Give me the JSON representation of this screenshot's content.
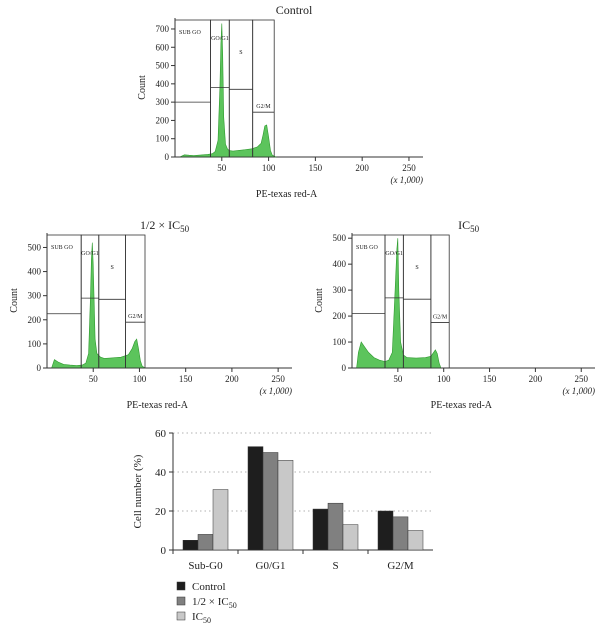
{
  "colors": {
    "hist_fill": "#5cc45c",
    "hist_stroke": "#2e9a2e",
    "control_bar": "#1e1e1e",
    "half_ic50_bar": "#808080",
    "ic50_bar": "#c8c8c8"
  },
  "chart_data": [
    {
      "id": "hist-control",
      "type": "area",
      "title": "Control",
      "xlabel": "PE-texas red-A",
      "x_unit": "(x 1,000)",
      "ylabel": "Count",
      "xlim": [
        0,
        265
      ],
      "ylim": [
        0,
        760
      ],
      "xticks": [
        50,
        100,
        150,
        200,
        250
      ],
      "yticks": [
        0,
        100,
        200,
        300,
        400,
        500,
        600,
        700
      ],
      "x": [
        5,
        10,
        15,
        20,
        25,
        30,
        35,
        40,
        43,
        46,
        48,
        49,
        50,
        51,
        52,
        54,
        56,
        58,
        62,
        68,
        75,
        82,
        88,
        92,
        94,
        96,
        98,
        100,
        102,
        104,
        108
      ],
      "y": [
        0,
        12,
        10,
        8,
        10,
        12,
        14,
        18,
        30,
        90,
        380,
        620,
        730,
        560,
        220,
        70,
        45,
        35,
        32,
        36,
        40,
        45,
        55,
        75,
        120,
        170,
        175,
        110,
        35,
        10,
        0
      ],
      "gates": [
        {
          "label": "SUB GO",
          "x_range": [
            0,
            38
          ],
          "level": 300
        },
        {
          "label": "GO/G1",
          "x_range": [
            38,
            58
          ],
          "level": 380
        },
        {
          "label": "S",
          "x_range": [
            58,
            83
          ],
          "level": 370
        },
        {
          "label": "G2/M",
          "x_range": [
            83,
            106
          ],
          "level": 245
        }
      ]
    },
    {
      "id": "hist-half-ic50",
      "type": "area",
      "title": "1/2 × IC",
      "title_sub": "50",
      "xlabel": "PE-texas red-A",
      "x_unit": "(x 1,000)",
      "ylabel": "Count",
      "xlim": [
        0,
        265
      ],
      "ylim": [
        0,
        560
      ],
      "xticks": [
        50,
        100,
        150,
        200,
        250
      ],
      "yticks": [
        0,
        100,
        200,
        300,
        400,
        500
      ],
      "x": [
        5,
        8,
        12,
        18,
        25,
        32,
        38,
        42,
        45,
        47,
        48,
        49,
        50,
        52,
        54,
        58,
        62,
        70,
        80,
        88,
        92,
        95,
        97,
        99,
        101,
        103,
        106
      ],
      "y": [
        0,
        35,
        25,
        15,
        12,
        10,
        12,
        20,
        60,
        300,
        450,
        520,
        430,
        120,
        60,
        45,
        40,
        42,
        45,
        55,
        80,
        110,
        120,
        80,
        30,
        8,
        0
      ],
      "gates": [
        {
          "label": "SUB GO",
          "x_range": [
            0,
            37
          ],
          "level": 225
        },
        {
          "label": "GO/G1",
          "x_range": [
            37,
            56
          ],
          "level": 290
        },
        {
          "label": "S",
          "x_range": [
            56,
            85
          ],
          "level": 285
        },
        {
          "label": "G2/M",
          "x_range": [
            85,
            106
          ],
          "level": 190
        }
      ]
    },
    {
      "id": "hist-ic50",
      "type": "area",
      "title": "IC",
      "title_sub": "50",
      "xlabel": "PE-texas red-A",
      "x_unit": "(x 1,000)",
      "ylabel": "Count",
      "xlim": [
        0,
        265
      ],
      "ylim": [
        0,
        520
      ],
      "xticks": [
        50,
        100,
        150,
        200,
        250
      ],
      "yticks": [
        0,
        100,
        200,
        300,
        400,
        500
      ],
      "x": [
        5,
        7,
        10,
        14,
        18,
        24,
        30,
        36,
        40,
        44,
        47,
        49,
        50,
        51,
        53,
        56,
        60,
        70,
        80,
        86,
        89,
        91,
        93,
        95,
        97
      ],
      "y": [
        0,
        60,
        100,
        80,
        60,
        40,
        30,
        25,
        30,
        60,
        300,
        460,
        500,
        300,
        100,
        50,
        40,
        38,
        40,
        45,
        60,
        70,
        55,
        20,
        0
      ],
      "gates": [
        {
          "label": "SUB GO",
          "x_range": [
            0,
            36
          ],
          "level": 210
        },
        {
          "label": "GO/G1",
          "x_range": [
            36,
            56
          ],
          "level": 270
        },
        {
          "label": "S",
          "x_range": [
            56,
            86
          ],
          "level": 265
        },
        {
          "label": "G2/M",
          "x_range": [
            86,
            106
          ],
          "level": 175
        }
      ]
    },
    {
      "id": "bar-cell-cycle",
      "type": "bar",
      "title": "",
      "xlabel": "",
      "ylabel": "Cell number (%)",
      "ylim": [
        0,
        60
      ],
      "yticks": [
        0,
        20,
        40,
        60
      ],
      "grid": true,
      "categories": [
        "Sub-G0",
        "G0/G1",
        "S",
        "G2/M"
      ],
      "series": [
        {
          "name": "Control",
          "values": [
            5,
            53,
            21,
            20
          ]
        },
        {
          "name": "1/2 × IC",
          "name_sub": "50",
          "values": [
            8,
            50,
            24,
            17
          ]
        },
        {
          "name": "IC",
          "name_sub": "50",
          "values": [
            31,
            46,
            13,
            10
          ]
        }
      ],
      "legend_position": "bottom-left"
    }
  ]
}
